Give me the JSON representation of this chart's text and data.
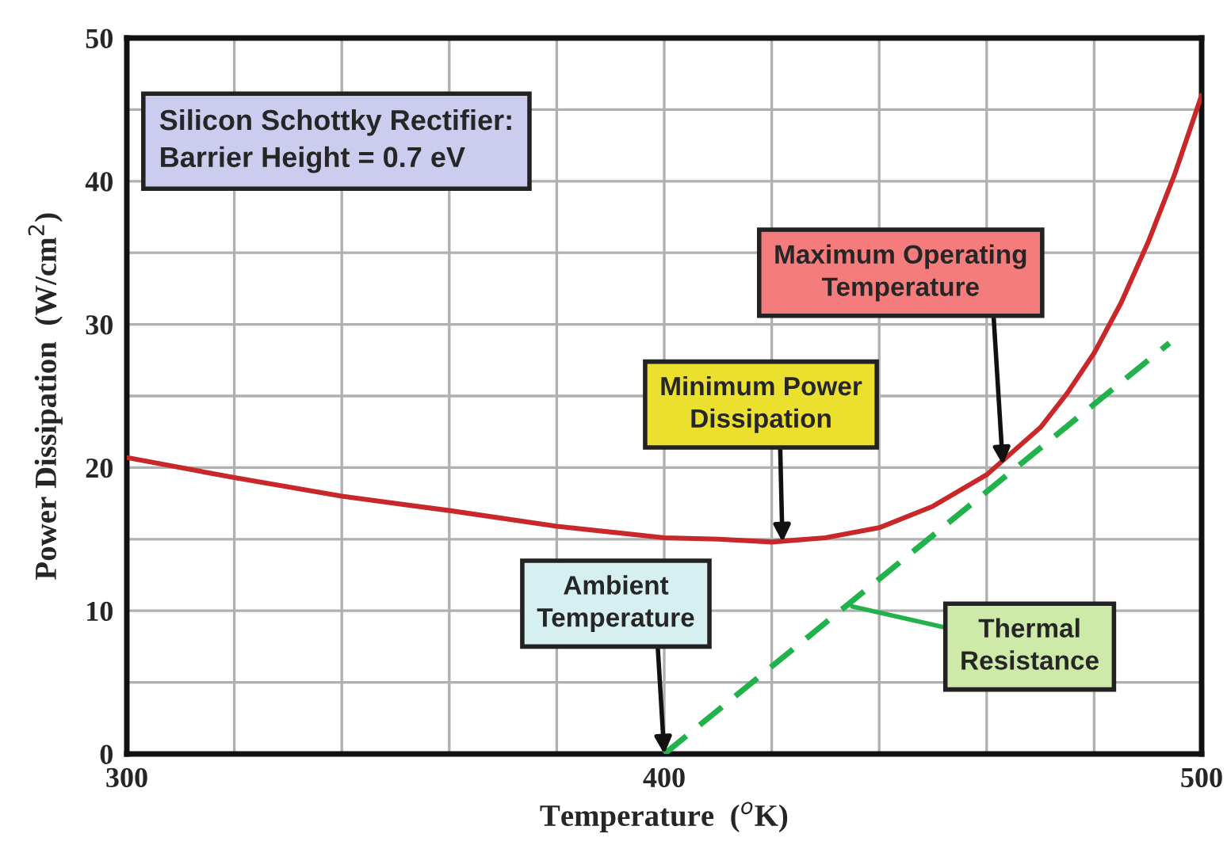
{
  "chart_data": {
    "type": "line",
    "xlabel": "Temperature  ($^{o}$K)",
    "ylabel": "Power Dissipation  (W/cm$^{2}$)",
    "xlim": [
      300,
      500
    ],
    "xticks": [
      300,
      {
        "value": 320,
        "label": null
      },
      {
        "value": 340,
        "label": null
      },
      {
        "value": 360,
        "label": null
      },
      {
        "value": 380,
        "label": null
      },
      400,
      {
        "value": 420,
        "label": null
      },
      {
        "value": 440,
        "label": null
      },
      {
        "value": 460,
        "label": null
      },
      {
        "value": 480,
        "label": null
      },
      500
    ],
    "ylim": [
      0,
      50
    ],
    "yticks": [
      0,
      {
        "value": 5,
        "label": null
      },
      10,
      {
        "value": 15,
        "label": null
      },
      20,
      {
        "value": 25,
        "label": null
      },
      30,
      {
        "value": 35,
        "label": null
      },
      40,
      {
        "value": 45,
        "label": null
      },
      50
    ],
    "grid": true,
    "legend": false,
    "series": [
      {
        "color": "#c8282a",
        "line_style": "solid",
        "x": [
          300,
          320,
          340,
          360,
          380,
          400,
          410,
          420,
          430,
          440,
          450,
          460,
          470,
          475,
          480,
          485,
          490,
          495,
          500
        ],
        "values": [
          20.7,
          19.3,
          18.0,
          17.0,
          15.9,
          15.1,
          15.0,
          14.8,
          15.1,
          15.8,
          17.3,
          19.5,
          22.8,
          25.2,
          28.0,
          31.5,
          35.7,
          40.5,
          46.0
        ]
      },
      {
        "color": "#22b24c",
        "line_style": "dashed",
        "x": [
          400,
          494
        ],
        "values": [
          0,
          28.7
        ]
      }
    ],
    "annotations": [
      "Silicon Schottky Rectifier:\nBarrier Height = 0.7 eV",
      {
        "text": "Maximum Operating\nTemperature",
        "x": 463,
        "y": 20.2
      },
      {
        "text": "Minimum Power\nDissipation",
        "x": 422,
        "y": 14.8
      },
      {
        "text": "Ambient\nTemperature",
        "x": 400,
        "y": 0
      },
      {
        "text": "Thermal\nResistance",
        "x": 435,
        "y": 10.3
      }
    ]
  }
}
